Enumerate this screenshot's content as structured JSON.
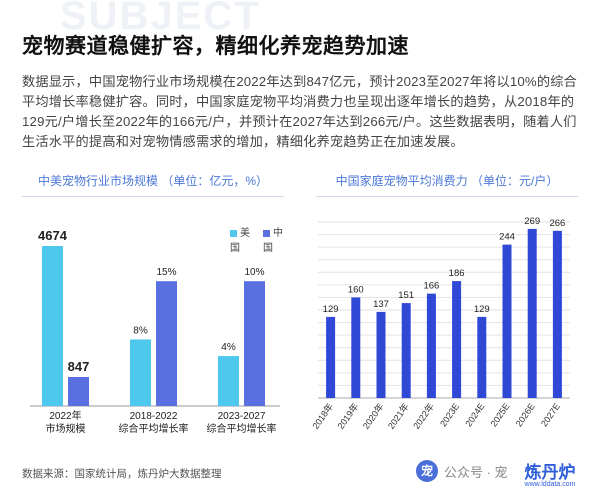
{
  "background_word": "SUBJECT",
  "heading": "宠物赛道稳健扩容，精细化养宠趋势加速",
  "body": "数据显示，中国宠物行业市场规模在2022年达到847亿元，预计2023至2027年将以10%的综合平均增长率稳健扩容。同时，中国家庭宠物平均消费力也呈现出逐年增长的趋势，从2018年的129元/户增长至2022年的166元/户，并预计在2027年达到266元/户。这些数据表明，随着人们生活水平的提高和对宠物情感需求的增加，精细化养宠趋势正在加速发展。",
  "colors": {
    "us": "#4fc8ee",
    "cn": "#5a6fe0",
    "bar_right": "#2f48d6",
    "title_blue": "#4b78d6"
  },
  "chart_data": [
    {
      "type": "bar",
      "title": "中美宠物行业市场规模 （单位：亿元，%）",
      "legend": [
        "美国",
        "中国"
      ],
      "groups": [
        {
          "label": [
            "2022年",
            "市场规模"
          ],
          "us": 4674,
          "cn": 847,
          "us_label": "4674",
          "cn_label": "847"
        },
        {
          "label": [
            "2018-2022",
            "综合平均增长率"
          ],
          "us": 8,
          "cn": 15,
          "us_label": "8%",
          "cn_label": "15%"
        },
        {
          "label": [
            "2023-2027",
            "综合平均增长率"
          ],
          "us": 4,
          "cn": 10,
          "us_label": "4%",
          "cn_label": "10%"
        }
      ]
    },
    {
      "type": "bar",
      "title": "中国家庭宠物平均消费力 （单位：元/户）",
      "categories": [
        "2018年",
        "2019年",
        "2020年",
        "2021年",
        "2022年",
        "2023E",
        "2024E",
        "2025E",
        "2026E",
        "2027E"
      ],
      "values": [
        129,
        160,
        137,
        151,
        166,
        186,
        129,
        244,
        269,
        266
      ],
      "ylim": [
        0,
        280
      ],
      "grid": true
    }
  ],
  "source": "数据来源：国家统计局，炼丹炉大数据整理",
  "watermark": {
    "text": "公众号 · 宠",
    "logo": "宠"
  },
  "brand": {
    "name": "炼丹炉",
    "url": "www.lddata.com"
  }
}
